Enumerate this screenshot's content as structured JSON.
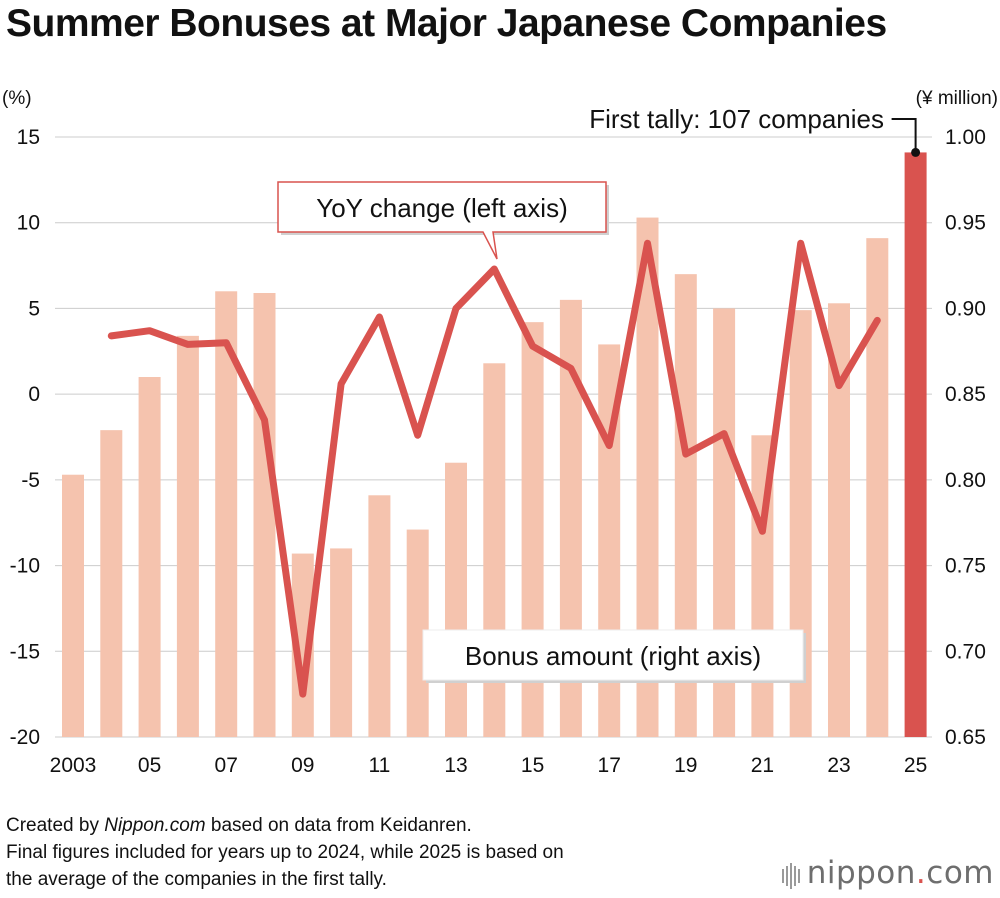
{
  "title": "Summer Bonuses at Major Japanese Companies",
  "colors": {
    "bar": "#f5c3ae",
    "bar_highlight": "#d9534f",
    "line": "#d9534f",
    "grid": "#cccccc",
    "callout_border": "#d9534f"
  },
  "chart_data": {
    "type": "bar+line",
    "left_axis": {
      "unit_label": "(%)",
      "ylim": [
        -20,
        15
      ],
      "ticks": [
        15,
        10,
        5,
        0,
        -5,
        -10,
        -15,
        -20
      ],
      "tick_labels": [
        "15",
        "10",
        "5",
        "0",
        "-5",
        "-10",
        "-15",
        "-20"
      ]
    },
    "right_axis": {
      "unit_label": "(¥ million)",
      "ylim": [
        0.65,
        1.0
      ],
      "ticks": [
        1.0,
        0.95,
        0.9,
        0.85,
        0.8,
        0.75,
        0.7,
        0.65
      ],
      "tick_labels": [
        "1.00",
        "0.95",
        "0.90",
        "0.85",
        "0.80",
        "0.75",
        "0.70",
        "0.65"
      ]
    },
    "x": [
      2003,
      2004,
      2005,
      2006,
      2007,
      2008,
      2009,
      2010,
      2011,
      2012,
      2013,
      2014,
      2015,
      2016,
      2017,
      2018,
      2019,
      2020,
      2021,
      2022,
      2023,
      2024,
      2025
    ],
    "x_tick_labels": [
      "2003",
      "",
      "05",
      "",
      "07",
      "",
      "09",
      "",
      "11",
      "",
      "13",
      "",
      "15",
      "",
      "17",
      "",
      "19",
      "",
      "21",
      "",
      "23",
      "",
      "25"
    ],
    "grid": true,
    "series": [
      {
        "name": "Bonus amount (right axis)",
        "type": "bar",
        "axis": "right",
        "values": [
          0.803,
          0.829,
          0.86,
          0.884,
          0.91,
          0.909,
          0.757,
          0.76,
          0.791,
          0.771,
          0.81,
          0.868,
          0.892,
          0.905,
          0.879,
          0.953,
          0.92,
          0.9,
          0.826,
          0.899,
          0.903,
          0.941,
          0.991
        ],
        "highlight_index": 22
      },
      {
        "name": "YoY change (left axis)",
        "type": "line",
        "axis": "left",
        "x": [
          2004,
          2005,
          2006,
          2007,
          2008,
          2009,
          2010,
          2011,
          2012,
          2013,
          2014,
          2015,
          2016,
          2017,
          2018,
          2019,
          2020,
          2021,
          2022,
          2023,
          2024
        ],
        "values": [
          3.4,
          3.7,
          2.9,
          3.0,
          -1.5,
          -17.5,
          0.6,
          4.5,
          -2.4,
          5.0,
          7.3,
          2.8,
          1.5,
          -3.0,
          8.8,
          -3.5,
          -2.3,
          -8.0,
          8.8,
          0.5,
          4.3
        ]
      }
    ],
    "annotations": {
      "first_tally": "First tally: 107 companies",
      "line_callout": "YoY change (left axis)",
      "bar_callout": "Bonus amount (right axis)"
    }
  },
  "notes": {
    "line1_prefix": "Created by ",
    "line1_source": "Nippon.com",
    "line1_suffix": " based on data from Keidanren.",
    "line2": "Final figures included for years up to 2024, while 2025 is based on",
    "line3": "the average of the companies in the first tally."
  },
  "logo": {
    "name": "nippon",
    "dot": ".",
    "tld": "com"
  }
}
